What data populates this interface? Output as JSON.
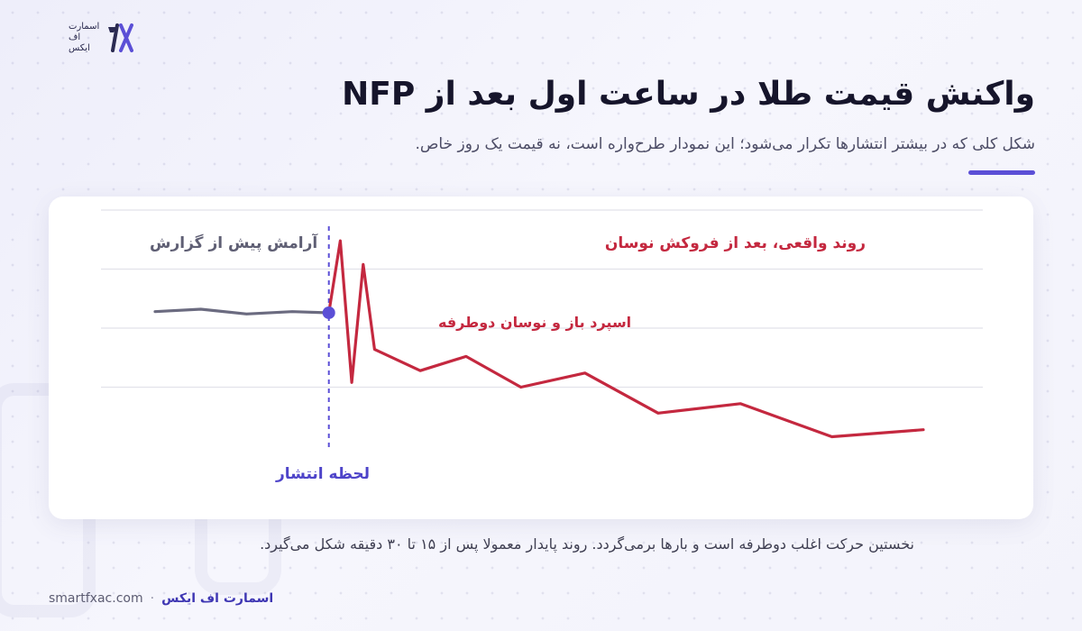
{
  "brand": {
    "logo_lines": [
      "اسمارت",
      "اف",
      "ایکس"
    ],
    "name": "اسمارت اف ایکس",
    "domain": "smartfxac.com"
  },
  "header": {
    "title": "واکنش قیمت طلا در ساعت اول بعد از NFP",
    "subtitle": "شکل کلی که در بیشتر انتشارها تکرار می‌شود؛ این نمودار طرح‌واره است، نه قیمت یک روز خاص."
  },
  "caption": "نخستین حرکت اغلب دوطرفه است و بارها برمی‌گردد. روند پایدار معمولا پس از ۱۵ تا ۳۰ دقیقه شکل می‌گیرد.",
  "colors": {
    "accent": "#5b4fd6",
    "pre_line": "#6b6b80",
    "post_line": "#c4283f",
    "gridline": "#e2e2ea"
  },
  "chart_data": {
    "type": "line",
    "title": "",
    "xlabel": "",
    "ylabel": "",
    "schematic": true,
    "ylim": [
      0,
      100
    ],
    "grid": true,
    "gridlines_y": [
      25,
      50,
      75,
      100
    ],
    "release_x": 0,
    "annotations": {
      "pre": "آرامش پیش از گزارش",
      "post": "روند واقعی، بعد از فروکش نوسان",
      "spike": "اسپرد باز و نوسان دوطرفه",
      "release": "لحظه انتشار"
    },
    "series": [
      {
        "key": "pre",
        "x": [
          -38,
          -28,
          -18,
          -8,
          0
        ],
        "y": [
          57,
          58,
          56,
          57,
          56.5
        ]
      },
      {
        "key": "post",
        "x": [
          0,
          2.5,
          5,
          7.5,
          10,
          20,
          30,
          42,
          56,
          72,
          90,
          110,
          130
        ],
        "y": [
          56.5,
          87,
          27,
          77,
          41,
          32,
          38,
          25,
          31,
          14,
          18,
          4,
          7
        ]
      }
    ]
  }
}
